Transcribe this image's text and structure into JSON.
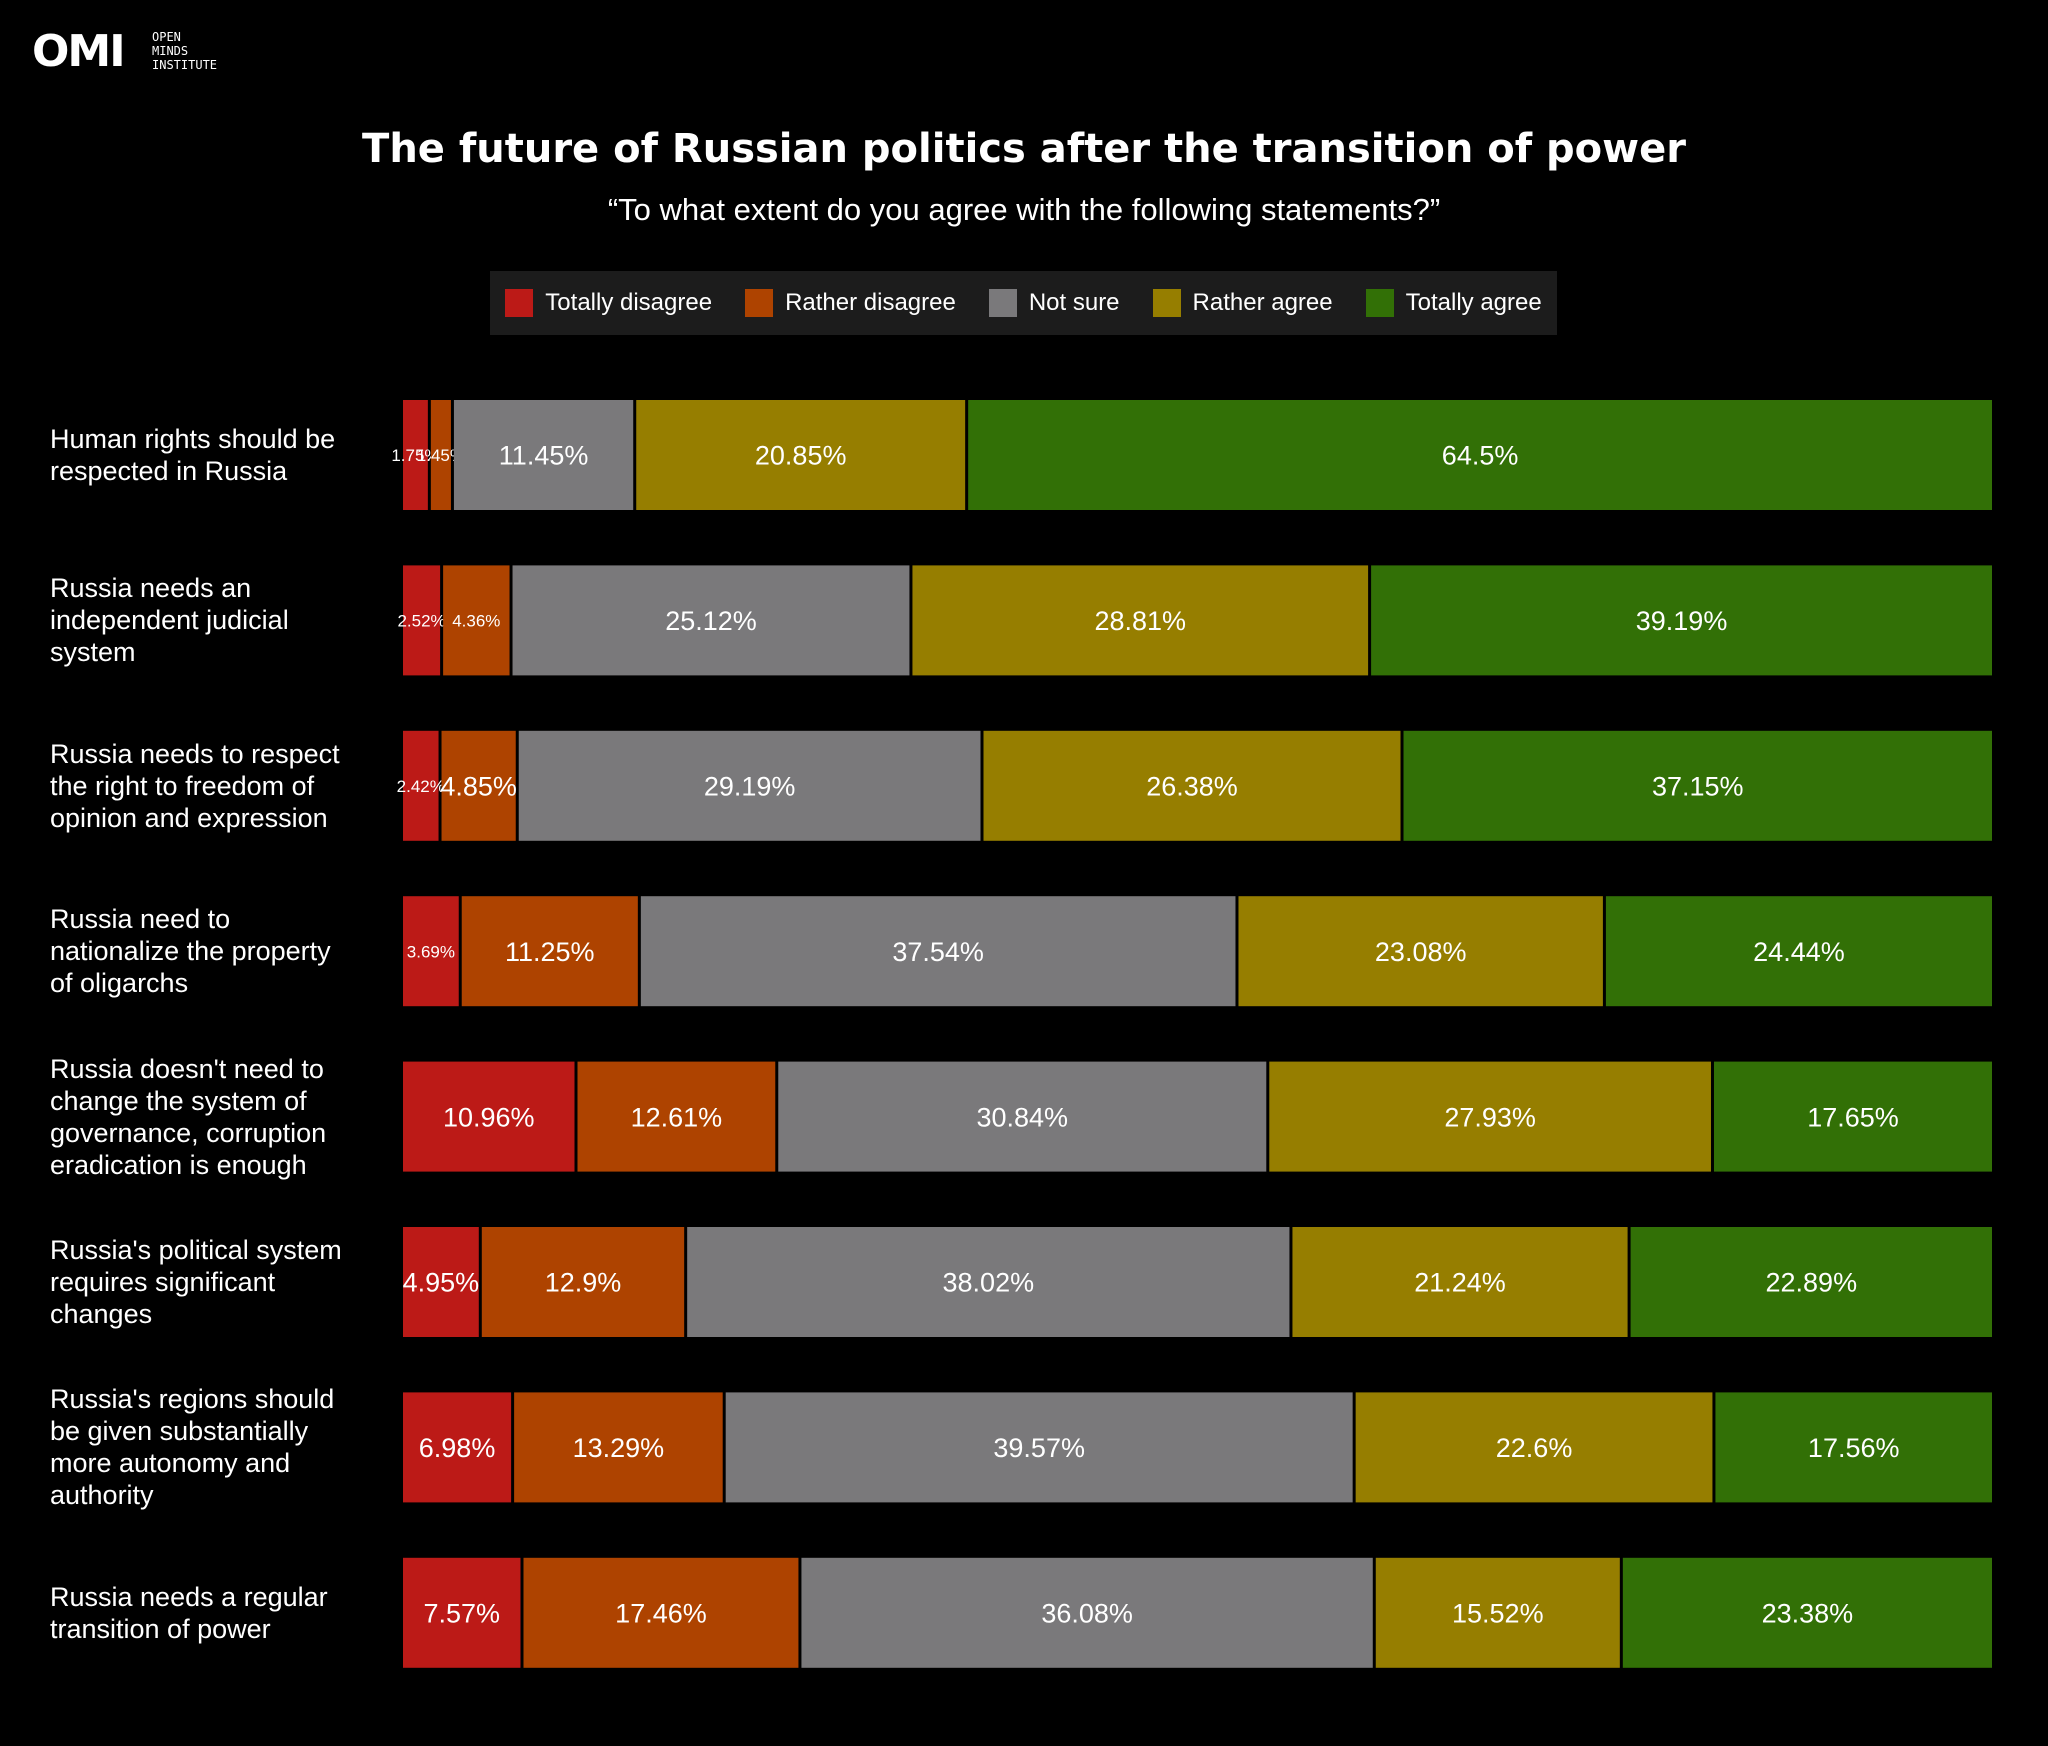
{
  "logo": {
    "mark": "OMI",
    "lines": [
      "OPEN",
      "MINDS",
      "INSTITUTE"
    ]
  },
  "colors": {
    "totally_disagree": "#bc1a17",
    "rather_disagree": "#ae4300",
    "not_sure": "#7a797b",
    "rather_agree": "#967e00",
    "totally_agree": "#327006",
    "background": "#000000"
  },
  "chart_data": {
    "type": "bar",
    "orientation": "horizontal",
    "stacked": true,
    "title": "The future of Russian politics after the transition of power",
    "subtitle": "“To what extent do you agree with the following statements?”",
    "legend_position": "top-center",
    "series": [
      {
        "name": "Totally disagree",
        "color": "#bc1a17",
        "values": [
          1.75,
          2.52,
          2.42,
          3.69,
          10.96,
          4.95,
          6.98,
          7.57
        ]
      },
      {
        "name": "Rather disagree",
        "color": "#ae4300",
        "values": [
          1.45,
          4.36,
          4.85,
          11.25,
          12.61,
          12.9,
          13.29,
          17.46
        ]
      },
      {
        "name": "Not sure",
        "color": "#7a797b",
        "values": [
          11.45,
          25.12,
          29.19,
          37.54,
          30.84,
          38.02,
          39.57,
          36.08
        ]
      },
      {
        "name": "Rather agree",
        "color": "#967e00",
        "values": [
          20.85,
          28.81,
          26.38,
          23.08,
          27.93,
          21.24,
          22.6,
          15.52
        ]
      },
      {
        "name": "Totally agree",
        "color": "#327006",
        "values": [
          64.5,
          39.19,
          37.15,
          24.44,
          17.65,
          22.89,
          17.56,
          23.38
        ]
      }
    ],
    "data_labels": [
      [
        "1.75%",
        "1.45%",
        "11.45%",
        "20.85%",
        "64.5%"
      ],
      [
        "2.52%",
        "4.36%",
        "25.12%",
        "28.81%",
        "39.19%"
      ],
      [
        "2.42%",
        "4.85%",
        "29.19%",
        "26.38%",
        "37.15%"
      ],
      [
        "3.69%",
        "11.25%",
        "37.54%",
        "23.08%",
        "24.44%"
      ],
      [
        "10.96%",
        "12.61%",
        "30.84%",
        "27.93%",
        "17.65%"
      ],
      [
        "4.95%",
        "12.9%",
        "38.02%",
        "21.24%",
        "22.89%"
      ],
      [
        "6.98%",
        "13.29%",
        "39.57%",
        "22.6%",
        "17.56%"
      ],
      [
        "7.57%",
        "17.46%",
        "36.08%",
        "15.52%",
        "23.38%"
      ]
    ],
    "categories": [
      [
        "Human rights should be",
        "respected in Russia"
      ],
      [
        "Russia needs an",
        "independent judicial",
        "system"
      ],
      [
        "Russia needs to respect",
        "the right to freedom of",
        "opinion and expression"
      ],
      [
        "Russia need to",
        "nationalize the property",
        "of oligarchs"
      ],
      [
        "Russia doesn't need to",
        "change the system of",
        "governance, corruption",
        "eradication is enough"
      ],
      [
        "Russia's political system",
        "requires significant",
        "changes"
      ],
      [
        "Russia's regions should",
        "be given substantially",
        "more autonomy and",
        "authority"
      ],
      [
        "Russia needs a regular",
        "transition of power"
      ]
    ]
  }
}
